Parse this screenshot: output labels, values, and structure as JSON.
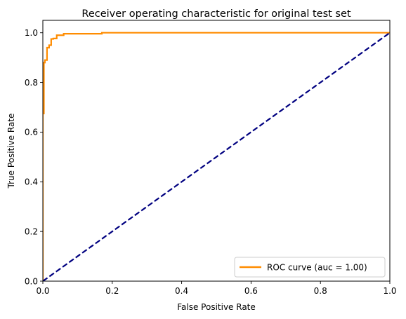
{
  "chart_data": {
    "type": "line",
    "title": "Receiver operating characteristic for original test set",
    "xlabel": "False Positive Rate",
    "ylabel": "True Positive Rate",
    "xlim": [
      0.0,
      1.0
    ],
    "ylim": [
      0.0,
      1.05
    ],
    "xticks": [
      0.0,
      0.2,
      0.4,
      0.6,
      0.8,
      1.0
    ],
    "yticks": [
      0.0,
      0.2,
      0.4,
      0.6,
      0.8,
      1.0
    ],
    "xtick_labels": [
      "0.0",
      "0.2",
      "0.4",
      "0.6",
      "0.8",
      "1.0"
    ],
    "ytick_labels": [
      "0.0",
      "0.2",
      "0.4",
      "0.6",
      "0.8",
      "1.0"
    ],
    "grid": false,
    "legend_position": "lower-right",
    "series": [
      {
        "name": "ROC curve (auc = 1.00)",
        "color": "#ff8c00",
        "style": "solid",
        "x": [
          0.0,
          0.0,
          0.003,
          0.003,
          0.006,
          0.006,
          0.012,
          0.012,
          0.018,
          0.018,
          0.024,
          0.024,
          0.03,
          0.03,
          0.04,
          0.04,
          0.05,
          0.05,
          0.06,
          0.06,
          0.17,
          0.17,
          1.0
        ],
        "y": [
          0.0,
          0.675,
          0.675,
          0.88,
          0.88,
          0.89,
          0.89,
          0.94,
          0.94,
          0.95,
          0.95,
          0.975,
          0.975,
          0.977,
          0.977,
          0.99,
          0.99,
          0.99,
          0.99,
          0.996,
          0.996,
          1.0,
          1.0
        ]
      },
      {
        "name": "",
        "color": "#000080",
        "style": "dashed",
        "x": [
          0.0,
          1.0
        ],
        "y": [
          0.0,
          1.0
        ]
      }
    ]
  }
}
